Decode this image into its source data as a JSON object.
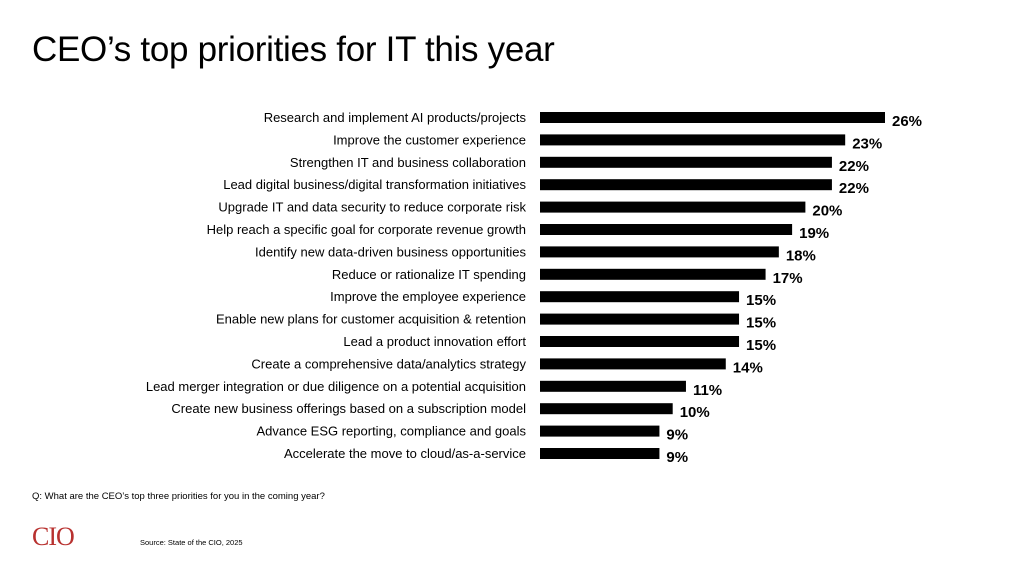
{
  "title": "CEO’s top priorities for IT this year",
  "question": "Q: What are the CEO’s top three priorities for you in the coming year?",
  "source": "Source: State of the CIO, 2025",
  "logo_text": "CIO",
  "colors": {
    "bar": "#000000",
    "logo": "#b8312f",
    "text": "#000000"
  },
  "chart_data": {
    "type": "bar",
    "orientation": "horizontal",
    "title": "CEO’s top priorities for IT this year",
    "xlabel": "",
    "ylabel": "",
    "xlim": [
      0,
      26
    ],
    "grid": false,
    "categories": [
      "Research and implement AI products/projects",
      "Improve the customer experience",
      "Strengthen IT and business collaboration",
      "Lead digital business/digital transformation initiatives",
      "Upgrade IT and data security to reduce corporate risk",
      "Help reach a specific goal for corporate revenue growth",
      "Identify new data-driven business opportunities",
      "Reduce or rationalize IT spending",
      "Improve the employee experience",
      "Enable new plans for customer acquisition & retention",
      "Lead a product innovation effort",
      "Create a comprehensive data/analytics strategy",
      "Lead merger integration or due diligence on a potential acquisition",
      "Create new business offerings based on a subscription model",
      "Advance ESG reporting, compliance and goals",
      "Accelerate the move to cloud/as-a-service"
    ],
    "values": [
      26,
      23,
      22,
      22,
      20,
      19,
      18,
      17,
      15,
      15,
      15,
      14,
      11,
      10,
      9,
      9
    ],
    "value_labels": [
      "26%",
      "23%",
      "22%",
      "22%",
      "20%",
      "19%",
      "18%",
      "17%",
      "15%",
      "15%",
      "15%",
      "14%",
      "11%",
      "10%",
      "9%",
      "9%"
    ]
  }
}
